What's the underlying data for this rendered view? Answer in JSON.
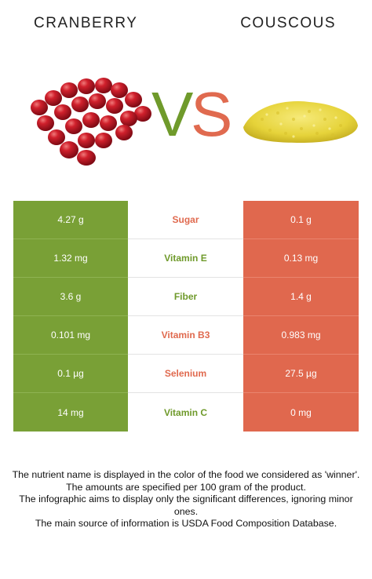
{
  "foods": {
    "left": "CRANBERRY",
    "right": "COUSCOUS"
  },
  "vs": {
    "v": "V",
    "s": "S"
  },
  "colors": {
    "left_winner": "#79a036",
    "right_winner": "#e0684e"
  },
  "rows": [
    {
      "nutrient": "Sugar",
      "left": "4.27 g",
      "right": "0.1 g",
      "winner": "right"
    },
    {
      "nutrient": "Vitamin E",
      "left": "1.32 mg",
      "right": "0.13 mg",
      "winner": "left"
    },
    {
      "nutrient": "Fiber",
      "left": "3.6 g",
      "right": "1.4 g",
      "winner": "left"
    },
    {
      "nutrient": "Vitamin B3",
      "left": "0.101 mg",
      "right": "0.983 mg",
      "winner": "right"
    },
    {
      "nutrient": "Selenium",
      "left": "0.1 µg",
      "right": "27.5 µg",
      "winner": "right"
    },
    {
      "nutrient": "Vitamin C",
      "left": "14 mg",
      "right": "0 mg",
      "winner": "left"
    }
  ],
  "footer": [
    "The nutrient name is displayed in the color of the food we considered as 'winner'.",
    "The amounts are specified per 100 gram of the product.",
    "The infographic aims to display only the significant differences, ignoring minor ones.",
    "The main source of information is USDA Food Composition Database."
  ]
}
